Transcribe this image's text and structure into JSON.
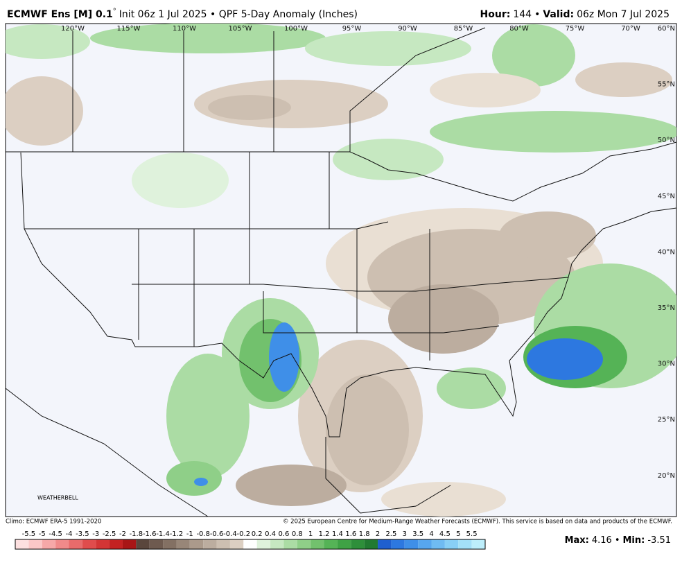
{
  "header": {
    "model": "ECMWF Ens [M] 0.1",
    "degree": "°",
    "description": "Init 06z 1 Jul 2025 • QPF 5-Day Anomaly (Inches)",
    "hour_label": "Hour:",
    "hour": "144",
    "separator": "•",
    "valid_label": "Valid:",
    "valid": "06z Mon 7 Jul 2025"
  },
  "map": {
    "longitudes": [
      "120°W",
      "115°W",
      "110°W",
      "105°W",
      "100°W",
      "95°W",
      "90°W",
      "85°W",
      "80°W",
      "75°W",
      "70°W"
    ],
    "latitudes": [
      "60°N",
      "55°N",
      "50°N",
      "45°N",
      "40°N",
      "35°N",
      "30°N",
      "25°N",
      "20°N"
    ],
    "watermark": "WEATHERBELL"
  },
  "footer": {
    "climo": "Climo: ECMWF ERA-5 1991-2020",
    "copyright": "© 2025 European Centre for Medium-Range Weather Forecasts (ECMWF). This service is based on data and products of the ECMWF."
  },
  "colorbar": {
    "labels": [
      "-5.5",
      "-5",
      "-4.5",
      "-4",
      "-3.5",
      "-3",
      "-2.5",
      "-2",
      "-1.8",
      "-1.6",
      "-1.4",
      "-1.2",
      "-1",
      "-0.8",
      "-0.6",
      "-0.4",
      "-0.2",
      "0.2",
      "0.4",
      "0.6",
      "0.8",
      "1",
      "1.2",
      "1.4",
      "1.6",
      "1.8",
      "2",
      "2.5",
      "3",
      "3.5",
      "4",
      "4.5",
      "5",
      "5.5"
    ],
    "colors": [
      "#fde0e0",
      "#fbc8c8",
      "#f6a8a8",
      "#f08a8a",
      "#e86b6b",
      "#e04c4c",
      "#d33535",
      "#c42222",
      "#a81616",
      "#5a463c",
      "#6e5a4f",
      "#837063",
      "#988678",
      "#ab9a8b",
      "#bcad9f",
      "#cdbfb1",
      "#dccfc2",
      "#ffffff",
      "#dff2dc",
      "#c6e8c1",
      "#abdca4",
      "#8fcf88",
      "#72c16d",
      "#55b356",
      "#3fa245",
      "#2e8f3a",
      "#217a31",
      "#1f5fcf",
      "#2d78e0",
      "#3f8fe8",
      "#57a6ee",
      "#6fbbf2",
      "#88cff6",
      "#a3e0f8",
      "#bdeefb"
    ]
  },
  "stats": {
    "max_label": "Max:",
    "max": "4.16",
    "separator": "•",
    "min_label": "Min:",
    "min": "-3.51"
  }
}
